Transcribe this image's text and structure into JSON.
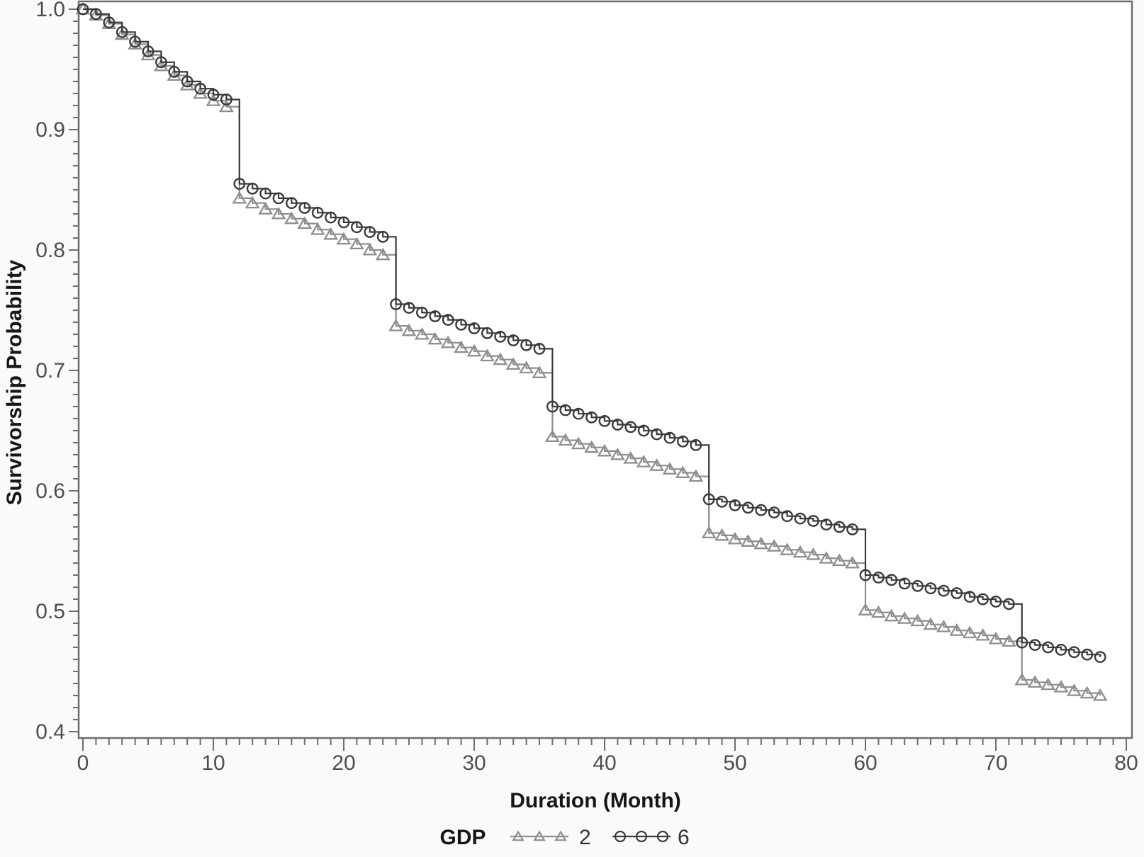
{
  "figure": {
    "outer_background": "#fafafa",
    "plot_background": "#ffffff",
    "frame_color": "#6e6e6e",
    "tick_color": "#6e6e6e",
    "tick_label_color": "#4d4d4d"
  },
  "legend": {
    "title": "GDP",
    "entries": [
      {
        "label": "2",
        "marker": "triangle",
        "color": "#8e8e8e"
      },
      {
        "label": "6",
        "marker": "circle",
        "color": "#3a3a3a"
      }
    ]
  },
  "chart_data": {
    "type": "line",
    "subtype": "step-survival",
    "title": "",
    "xlabel": "Duration (Month)",
    "ylabel": "Survivorship Probability",
    "xlim": [
      0,
      80
    ],
    "ylim": [
      0.4,
      1.0
    ],
    "grid": false,
    "legend_position": "bottom",
    "axes": {
      "x": {
        "tick_labels": [
          "0",
          "10",
          "20",
          "30",
          "40",
          "50",
          "60",
          "70",
          "80"
        ],
        "tick_values": [
          0,
          10,
          20,
          30,
          40,
          50,
          60,
          70,
          80
        ],
        "minor_tick_step": 1
      },
      "y": {
        "tick_labels": [
          "1.0",
          "0.9",
          "0.8",
          "0.7",
          "0.6",
          "0.5",
          "0.4"
        ],
        "tick_values": [
          1.0,
          0.9,
          0.8,
          0.7,
          0.6,
          0.5,
          0.4
        ],
        "minor_tick_step": 0.01
      }
    },
    "x": [
      0,
      1,
      2,
      3,
      4,
      5,
      6,
      7,
      8,
      9,
      10,
      11,
      12,
      13,
      14,
      15,
      16,
      17,
      18,
      19,
      20,
      21,
      22,
      23,
      24,
      25,
      26,
      27,
      28,
      29,
      30,
      31,
      32,
      33,
      34,
      35,
      36,
      37,
      38,
      39,
      40,
      41,
      42,
      43,
      44,
      45,
      46,
      47,
      48,
      49,
      50,
      51,
      52,
      53,
      54,
      55,
      56,
      57,
      58,
      59,
      60,
      61,
      62,
      63,
      64,
      65,
      66,
      67,
      68,
      69,
      70,
      71,
      72,
      73,
      74,
      75,
      76,
      77,
      78
    ],
    "series": [
      {
        "name": "2",
        "marker": "triangle",
        "color": "#8e8e8e",
        "values": [
          1.0,
          0.995,
          0.988,
          0.979,
          0.971,
          0.962,
          0.953,
          0.945,
          0.937,
          0.93,
          0.924,
          0.919,
          0.843,
          0.839,
          0.834,
          0.83,
          0.826,
          0.822,
          0.817,
          0.813,
          0.809,
          0.805,
          0.8,
          0.796,
          0.737,
          0.733,
          0.73,
          0.726,
          0.723,
          0.719,
          0.716,
          0.712,
          0.709,
          0.705,
          0.702,
          0.698,
          0.645,
          0.642,
          0.639,
          0.636,
          0.633,
          0.63,
          0.627,
          0.624,
          0.621,
          0.618,
          0.615,
          0.612,
          0.565,
          0.563,
          0.56,
          0.558,
          0.556,
          0.554,
          0.551,
          0.549,
          0.547,
          0.544,
          0.542,
          0.54,
          0.501,
          0.499,
          0.496,
          0.494,
          0.492,
          0.489,
          0.487,
          0.484,
          0.482,
          0.48,
          0.477,
          0.475,
          0.443,
          0.441,
          0.439,
          0.437,
          0.434,
          0.432,
          0.43
        ]
      },
      {
        "name": "6",
        "marker": "circle",
        "color": "#3a3a3a",
        "values": [
          1.0,
          0.996,
          0.989,
          0.981,
          0.973,
          0.965,
          0.956,
          0.948,
          0.94,
          0.934,
          0.929,
          0.925,
          0.855,
          0.851,
          0.847,
          0.843,
          0.839,
          0.835,
          0.831,
          0.827,
          0.823,
          0.819,
          0.815,
          0.811,
          0.755,
          0.752,
          0.748,
          0.745,
          0.742,
          0.738,
          0.735,
          0.731,
          0.728,
          0.725,
          0.721,
          0.718,
          0.67,
          0.667,
          0.664,
          0.661,
          0.658,
          0.655,
          0.653,
          0.65,
          0.647,
          0.644,
          0.641,
          0.638,
          0.593,
          0.591,
          0.588,
          0.586,
          0.584,
          0.582,
          0.579,
          0.577,
          0.575,
          0.572,
          0.57,
          0.568,
          0.53,
          0.528,
          0.526,
          0.523,
          0.521,
          0.519,
          0.517,
          0.515,
          0.512,
          0.51,
          0.508,
          0.506,
          0.474,
          0.472,
          0.47,
          0.468,
          0.466,
          0.464,
          0.462
        ]
      }
    ]
  }
}
